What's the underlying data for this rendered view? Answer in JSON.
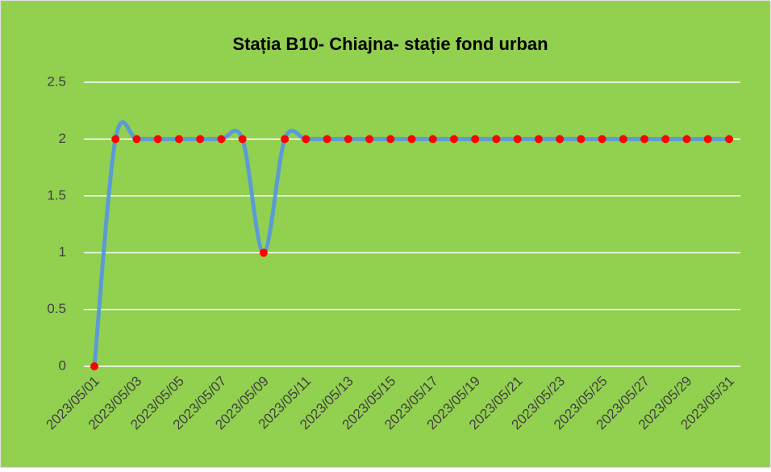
{
  "chart_data": {
    "type": "line",
    "title": "Stația B10- Chiajna- stație fond urban",
    "categories": [
      "2023/05/01",
      null,
      "2023/05/03",
      null,
      "2023/05/05",
      null,
      "2023/05/07",
      null,
      "2023/05/09",
      null,
      "2023/05/11",
      null,
      "2023/05/13",
      null,
      "2023/05/15",
      null,
      "2023/05/17",
      null,
      "2023/05/19",
      null,
      "2023/05/21",
      null,
      "2023/05/23",
      null,
      "2023/05/25",
      null,
      "2023/05/27",
      null,
      "2023/05/29",
      null,
      "2023/05/31"
    ],
    "series": [
      {
        "color": "#5b9bd5",
        "marker_color": "#ff0000",
        "values": [
          0,
          2,
          2,
          2,
          2,
          2,
          2,
          2,
          1,
          2,
          2,
          2,
          2,
          2,
          2,
          2,
          2,
          2,
          2,
          2,
          2,
          2,
          2,
          2,
          2,
          2,
          2,
          2,
          2,
          2,
          2
        ]
      }
    ],
    "ylim": [
      0,
      2.5
    ],
    "yticks": [
      0,
      0.5,
      1,
      1.5,
      2,
      2.5
    ],
    "grid": true,
    "smooth": true
  }
}
